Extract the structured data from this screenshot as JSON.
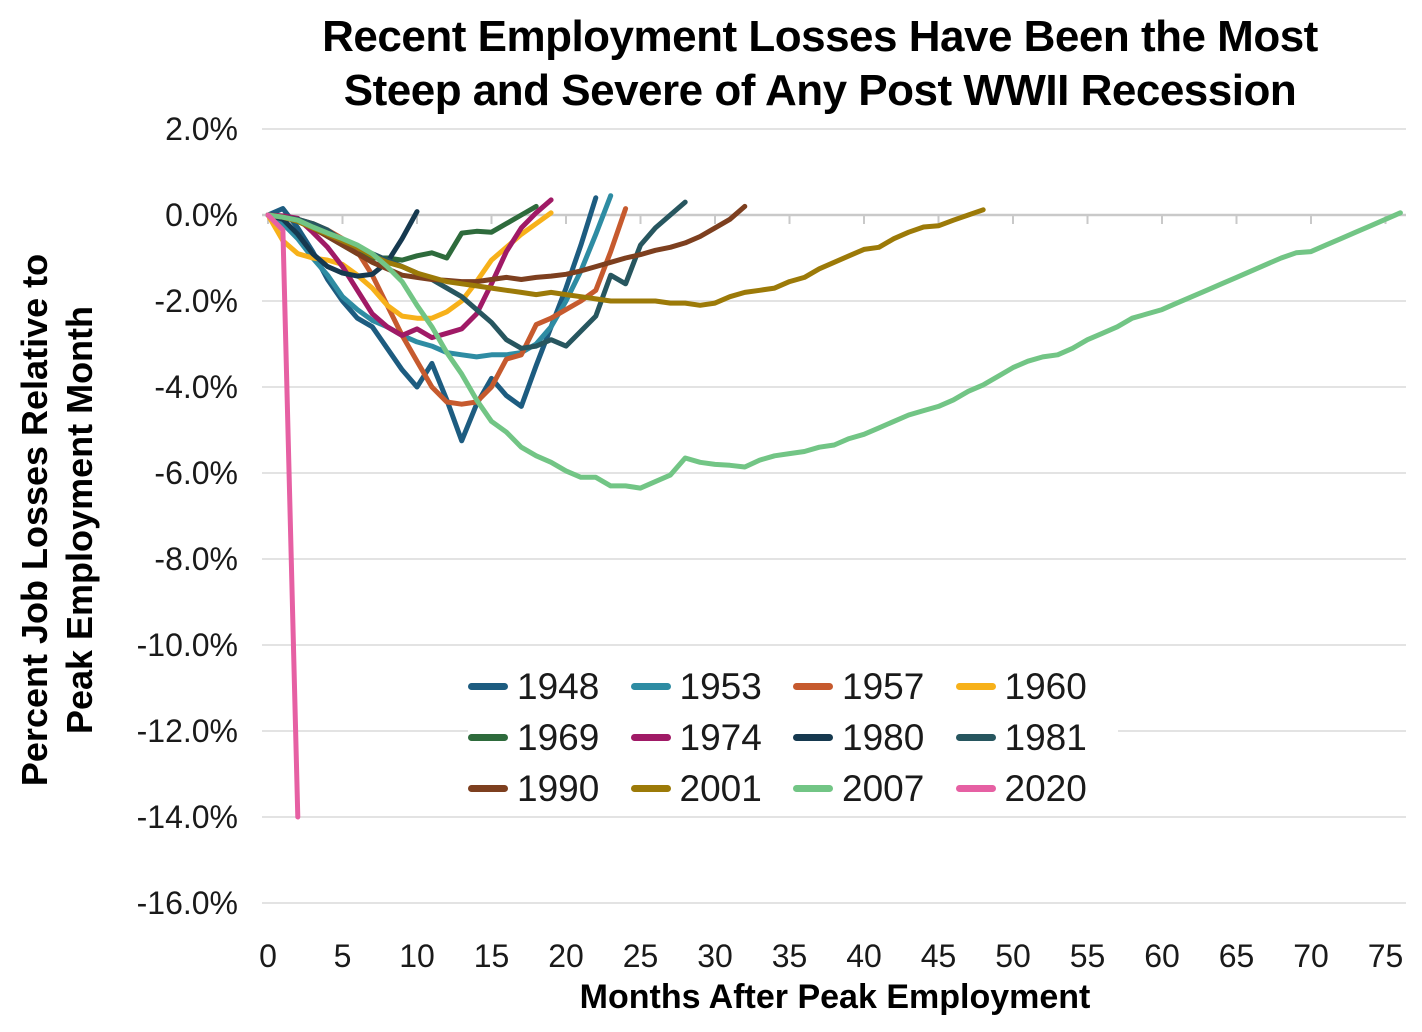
{
  "title": {
    "line1": "Recent Employment Losses Have Been the Most",
    "line2": "Steep and Severe of Any Post WWII Recession"
  },
  "axes": {
    "y_title_line1": "Percent Job Losses Relative to",
    "y_title_line2": "Peak Employment Month",
    "x_title": "Months After Peak Employment",
    "y_ticks": [
      "2.0%",
      "0.0%",
      "-2.0%",
      "-4.0%",
      "-6.0%",
      "-8.0%",
      "-10.0%",
      "-12.0%",
      "-14.0%",
      "-16.0%"
    ],
    "x_ticks": [
      "0",
      "5",
      "10",
      "15",
      "20",
      "25",
      "30",
      "35",
      "40",
      "45",
      "50",
      "55",
      "60",
      "65",
      "70",
      "75"
    ]
  },
  "colors": {
    "grid": "#e3e3e3",
    "zero_axis": "#c9c9c9",
    "text": "#1a1a1a",
    "background": "#ffffff"
  },
  "chart_data": {
    "type": "line",
    "title": "Recent Employment Losses Have Been the Most Steep and Severe of Any Post WWII Recession",
    "xlabel": "Months After Peak Employment",
    "ylabel": "Percent Job Losses Relative to Peak Employment Month",
    "x_meaning": "months after peak employment; value index = month",
    "y_unit": "percent",
    "xlim": [
      0,
      76
    ],
    "ylim": [
      -16,
      2
    ],
    "x_tick_step": 5,
    "y_tick_step": 2,
    "grid": true,
    "legend_position": "inside-bottom-center",
    "series": [
      {
        "name": "1948",
        "color": "#1d5c80",
        "values": [
          0,
          0.15,
          -0.3,
          -0.85,
          -1.5,
          -2.0,
          -2.4,
          -2.6,
          -3.1,
          -3.6,
          -4.0,
          -3.45,
          -4.3,
          -5.25,
          -4.4,
          -3.8,
          -4.2,
          -4.45,
          -3.5,
          -2.6,
          -1.7,
          -0.7,
          0.4
        ]
      },
      {
        "name": "1953",
        "color": "#2e8ca3",
        "values": [
          0,
          -0.2,
          -0.55,
          -1.0,
          -1.4,
          -1.9,
          -2.2,
          -2.45,
          -2.6,
          -2.8,
          -2.95,
          -3.05,
          -3.2,
          -3.25,
          -3.3,
          -3.25,
          -3.25,
          -3.2,
          -3.0,
          -2.6,
          -2.0,
          -1.3,
          -0.45,
          0.45
        ]
      },
      {
        "name": "1957",
        "color": "#c65a2e",
        "values": [
          0,
          -0.05,
          -0.1,
          -0.2,
          -0.35,
          -0.55,
          -0.85,
          -1.4,
          -2.1,
          -2.8,
          -3.4,
          -4.0,
          -4.35,
          -4.4,
          -4.35,
          -4.0,
          -3.35,
          -3.25,
          -2.55,
          -2.4,
          -2.2,
          -2.0,
          -1.75,
          -0.85,
          0.15
        ]
      },
      {
        "name": "1960",
        "color": "#f7b11a",
        "values": [
          0,
          -0.6,
          -0.9,
          -1.0,
          -1.05,
          -1.15,
          -1.4,
          -1.7,
          -2.1,
          -2.35,
          -2.4,
          -2.4,
          -2.25,
          -2.0,
          -1.55,
          -1.05,
          -0.75,
          -0.45,
          -0.2,
          0.05
        ]
      },
      {
        "name": "1969",
        "color": "#2e6b3c",
        "values": [
          0,
          -0.05,
          -0.1,
          -0.25,
          -0.5,
          -0.7,
          -0.9,
          -1.0,
          -1.0,
          -1.05,
          -0.95,
          -0.88,
          -1.0,
          -0.42,
          -0.38,
          -0.4,
          -0.2,
          0.0,
          0.2
        ]
      },
      {
        "name": "1974",
        "color": "#a01a66",
        "values": [
          0,
          -0.02,
          -0.08,
          -0.4,
          -0.75,
          -1.2,
          -1.75,
          -2.3,
          -2.6,
          -2.8,
          -2.65,
          -2.85,
          -2.75,
          -2.65,
          -2.3,
          -1.6,
          -0.85,
          -0.3,
          0.05,
          0.35
        ]
      },
      {
        "name": "1980",
        "color": "#16394f",
        "values": [
          0,
          -0.1,
          -0.45,
          -0.9,
          -1.2,
          -1.35,
          -1.42,
          -1.38,
          -1.1,
          -0.55,
          0.08
        ]
      },
      {
        "name": "1981",
        "color": "#27565f",
        "values": [
          0,
          -0.05,
          -0.1,
          -0.2,
          -0.35,
          -0.6,
          -0.75,
          -0.9,
          -1.05,
          -1.2,
          -1.35,
          -1.5,
          -1.7,
          -1.9,
          -2.2,
          -2.5,
          -2.9,
          -3.1,
          -3.05,
          -2.9,
          -3.05,
          -2.7,
          -2.35,
          -1.4,
          -1.6,
          -0.7,
          -0.3,
          0.0,
          0.3
        ]
      },
      {
        "name": "1990",
        "color": "#7d3f1f",
        "values": [
          0,
          -0.05,
          -0.15,
          -0.3,
          -0.5,
          -0.7,
          -0.9,
          -1.1,
          -1.25,
          -1.4,
          -1.45,
          -1.5,
          -1.52,
          -1.55,
          -1.55,
          -1.5,
          -1.45,
          -1.5,
          -1.45,
          -1.42,
          -1.38,
          -1.3,
          -1.2,
          -1.1,
          -1.0,
          -0.92,
          -0.82,
          -0.75,
          -0.65,
          -0.5,
          -0.3,
          -0.1,
          0.2
        ]
      },
      {
        "name": "2001",
        "color": "#9c7a08",
        "values": [
          0,
          -0.05,
          -0.15,
          -0.3,
          -0.45,
          -0.6,
          -0.75,
          -0.95,
          -1.1,
          -1.2,
          -1.35,
          -1.45,
          -1.55,
          -1.6,
          -1.65,
          -1.7,
          -1.75,
          -1.8,
          -1.85,
          -1.8,
          -1.85,
          -1.9,
          -1.95,
          -2.0,
          -2.0,
          -2.0,
          -2.0,
          -2.05,
          -2.05,
          -2.1,
          -2.05,
          -1.9,
          -1.8,
          -1.75,
          -1.7,
          -1.55,
          -1.45,
          -1.25,
          -1.1,
          -0.95,
          -0.8,
          -0.75,
          -0.55,
          -0.4,
          -0.28,
          -0.25,
          -0.12,
          0.0,
          0.12
        ]
      },
      {
        "name": "2007",
        "color": "#72c585",
        "values": [
          0,
          -0.05,
          -0.12,
          -0.28,
          -0.42,
          -0.55,
          -0.7,
          -0.9,
          -1.2,
          -1.55,
          -2.1,
          -2.6,
          -3.2,
          -3.7,
          -4.3,
          -4.8,
          -5.05,
          -5.4,
          -5.6,
          -5.75,
          -5.95,
          -6.1,
          -6.1,
          -6.3,
          -6.3,
          -6.35,
          -6.2,
          -6.05,
          -5.65,
          -5.75,
          -5.8,
          -5.82,
          -5.86,
          -5.7,
          -5.6,
          -5.55,
          -5.5,
          -5.4,
          -5.35,
          -5.2,
          -5.1,
          -4.95,
          -4.8,
          -4.65,
          -4.55,
          -4.45,
          -4.3,
          -4.1,
          -3.95,
          -3.75,
          -3.55,
          -3.4,
          -3.3,
          -3.25,
          -3.1,
          -2.9,
          -2.75,
          -2.6,
          -2.4,
          -2.3,
          -2.2,
          -2.05,
          -1.9,
          -1.75,
          -1.6,
          -1.45,
          -1.3,
          -1.15,
          -1.0,
          -0.88,
          -0.85,
          -0.7,
          -0.55,
          -0.4,
          -0.25,
          -0.1,
          0.05
        ]
      },
      {
        "name": "2020",
        "color": "#e660a3",
        "values": [
          0,
          -0.35,
          -14.0
        ]
      }
    ]
  }
}
